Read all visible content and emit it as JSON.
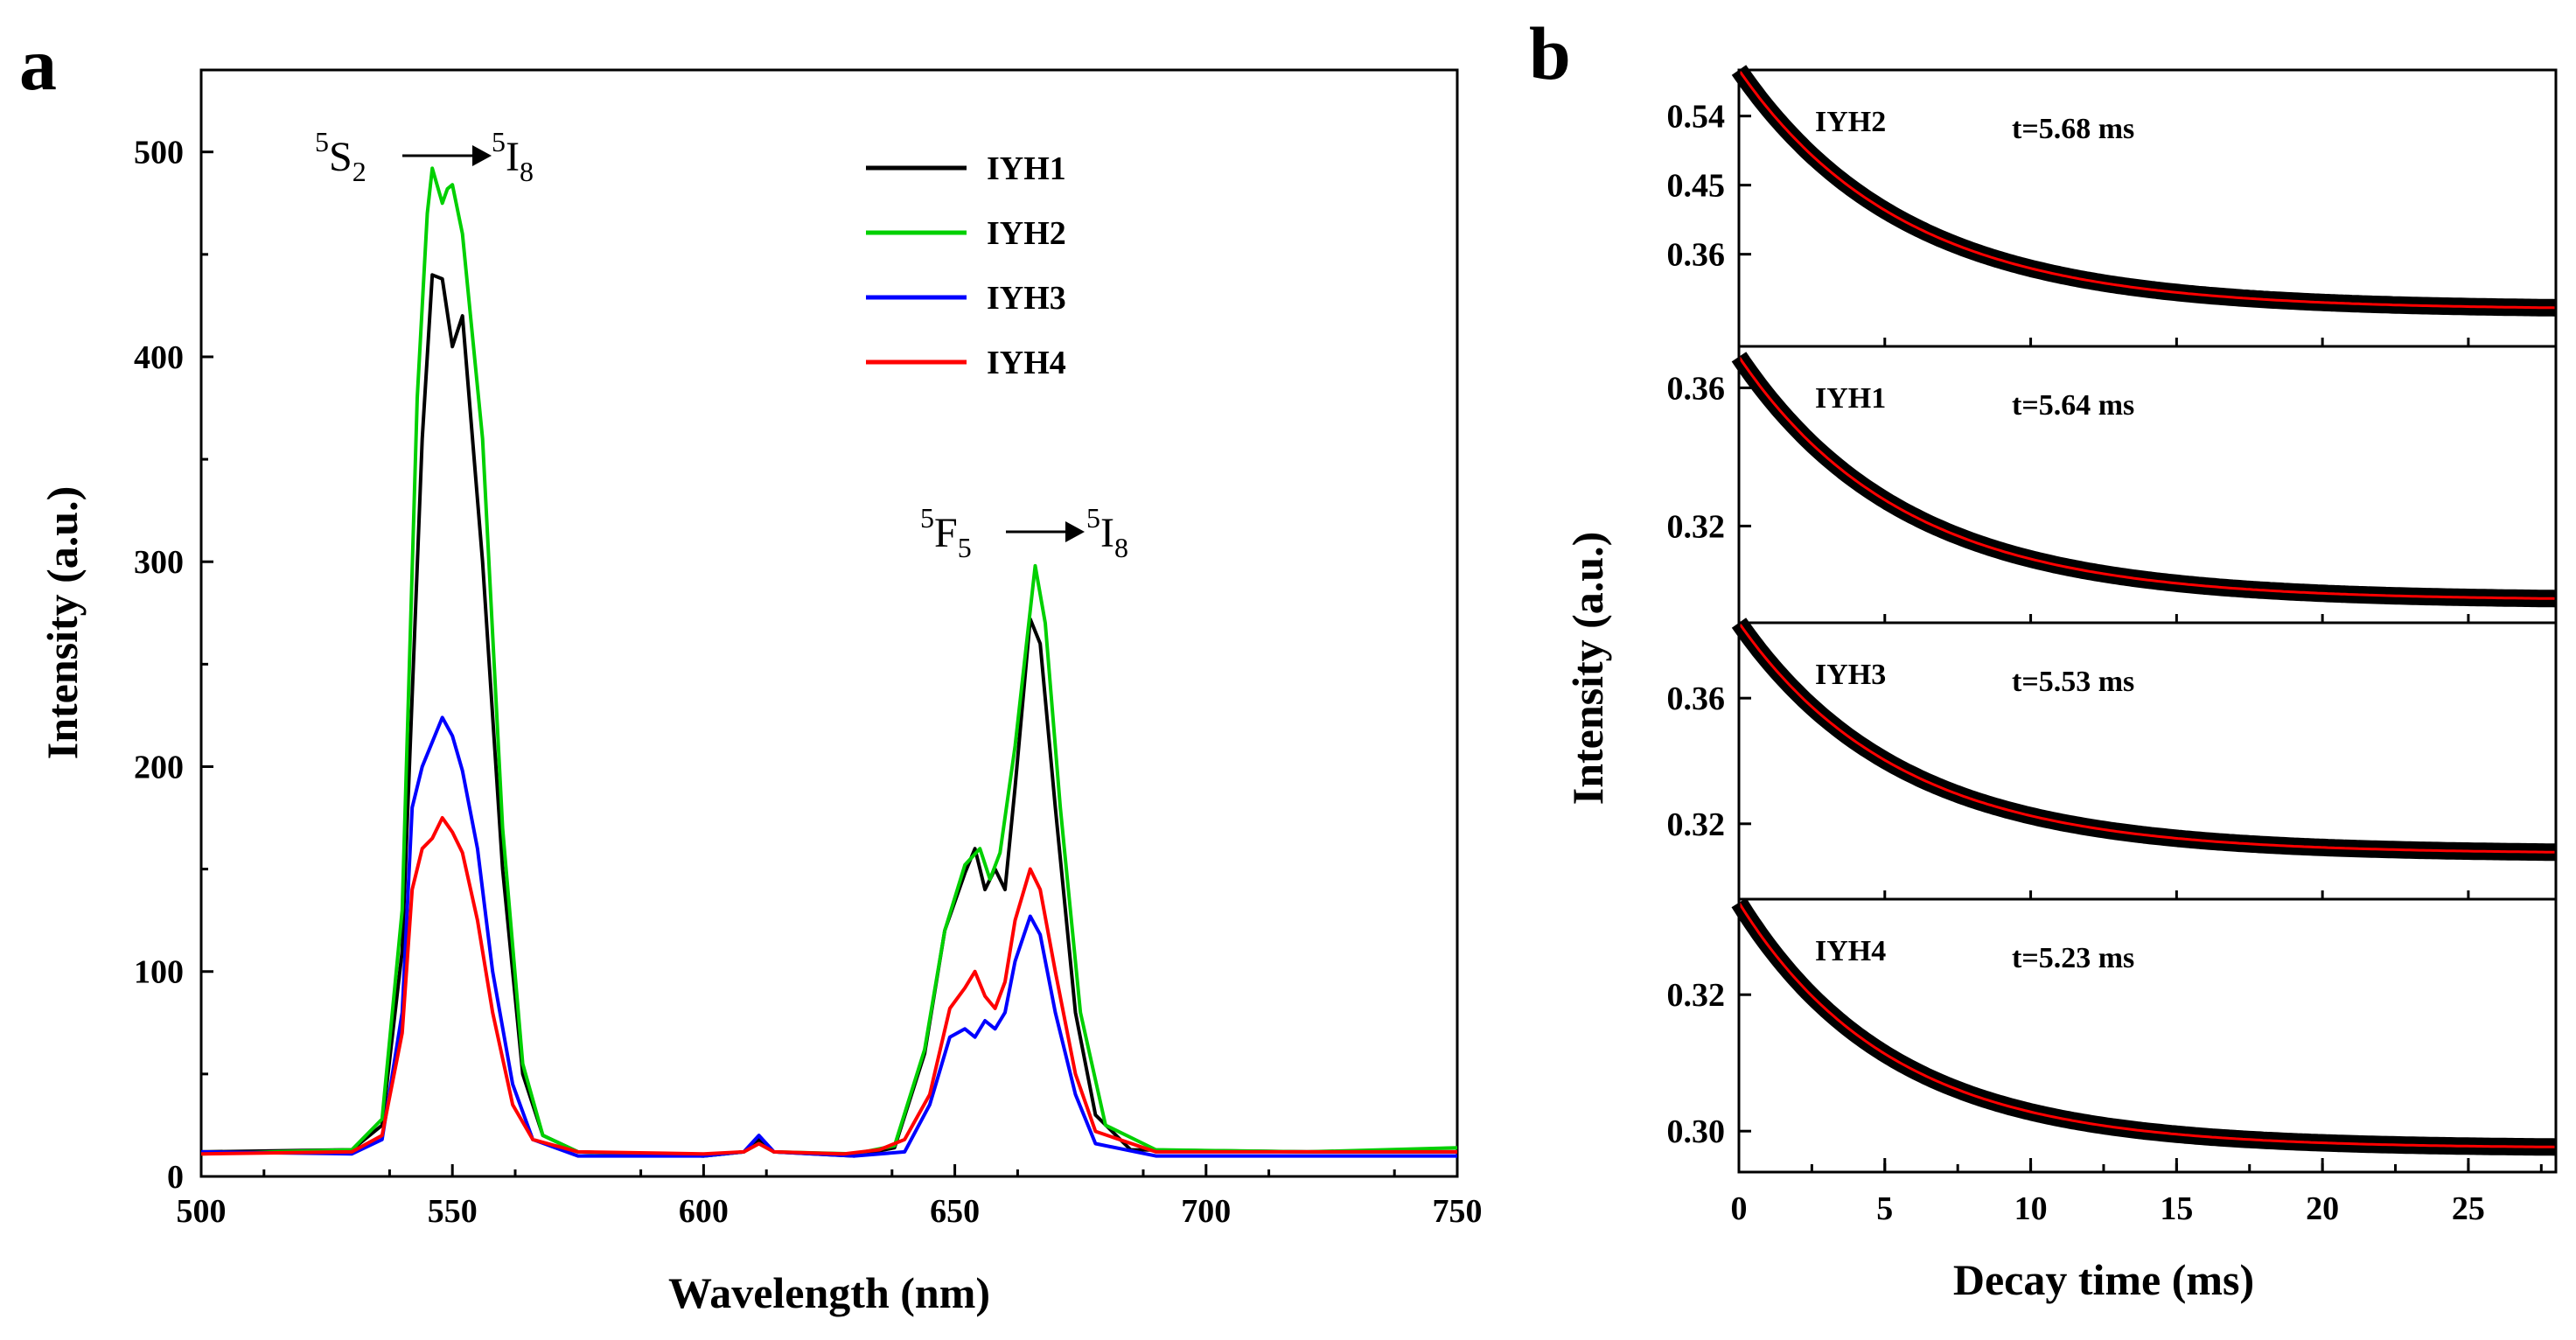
{
  "chart_data": [
    {
      "panel": "a",
      "type": "line",
      "title": "",
      "xlabel": "Wavelength (nm)",
      "ylabel": "Intensity (a.u.)",
      "xlim": [
        500,
        750
      ],
      "ylim": [
        0,
        540
      ],
      "xticks": [
        500,
        550,
        600,
        650,
        700,
        750
      ],
      "yticks": [
        0,
        100,
        200,
        300,
        400,
        500
      ],
      "legend_position": "top-center",
      "annotations": [
        {
          "text_sup1": "5",
          "text_main1": "S",
          "text_sub1": "2",
          "text_sup2": "5",
          "text_main2": "I",
          "text_sub2": "8"
        },
        {
          "text_sup1": "5",
          "text_main1": "F",
          "text_sub1": "5",
          "text_sup2": "5",
          "text_main2": "I",
          "text_sub2": "8"
        }
      ],
      "series": [
        {
          "name": "IYH1",
          "color": "#000000",
          "points": [
            [
              500,
              12
            ],
            [
              530,
              13
            ],
            [
              536,
              25
            ],
            [
              540,
              110
            ],
            [
              544,
              360
            ],
            [
              546,
              440
            ],
            [
              548,
              438
            ],
            [
              550,
              405
            ],
            [
              552,
              420
            ],
            [
              556,
              300
            ],
            [
              560,
              150
            ],
            [
              564,
              50
            ],
            [
              568,
              20
            ],
            [
              575,
              12
            ],
            [
              600,
              10
            ],
            [
              608,
              12
            ],
            [
              611,
              18
            ],
            [
              614,
              12
            ],
            [
              630,
              10
            ],
            [
              638,
              14
            ],
            [
              644,
              60
            ],
            [
              648,
              120
            ],
            [
              652,
              148
            ],
            [
              654,
              160
            ],
            [
              656,
              140
            ],
            [
              658,
              150
            ],
            [
              660,
              140
            ],
            [
              662,
              190
            ],
            [
              665,
              272
            ],
            [
              667,
              260
            ],
            [
              670,
              180
            ],
            [
              674,
              80
            ],
            [
              678,
              30
            ],
            [
              685,
              13
            ],
            [
              720,
              12
            ],
            [
              750,
              12
            ]
          ]
        },
        {
          "name": "IYH2",
          "color": "#00d000",
          "points": [
            [
              500,
              11
            ],
            [
              530,
              13
            ],
            [
              536,
              28
            ],
            [
              540,
              130
            ],
            [
              543,
              380
            ],
            [
              545,
              470
            ],
            [
              546,
              492
            ],
            [
              548,
              475
            ],
            [
              549,
              482
            ],
            [
              550,
              484
            ],
            [
              552,
              460
            ],
            [
              556,
              360
            ],
            [
              560,
              170
            ],
            [
              564,
              55
            ],
            [
              568,
              20
            ],
            [
              575,
              12
            ],
            [
              600,
              10
            ],
            [
              608,
              12
            ],
            [
              611,
              16
            ],
            [
              614,
              12
            ],
            [
              630,
              11
            ],
            [
              638,
              15
            ],
            [
              644,
              62
            ],
            [
              648,
              120
            ],
            [
              652,
              152
            ],
            [
              655,
              160
            ],
            [
              657,
              145
            ],
            [
              659,
              158
            ],
            [
              662,
              210
            ],
            [
              666,
              298
            ],
            [
              668,
              270
            ],
            [
              671,
              180
            ],
            [
              675,
              80
            ],
            [
              680,
              25
            ],
            [
              690,
              13
            ],
            [
              720,
              12
            ],
            [
              750,
              14
            ]
          ]
        },
        {
          "name": "IYH3",
          "color": "#0000ff",
          "points": [
            [
              500,
              12
            ],
            [
              530,
              11
            ],
            [
              536,
              18
            ],
            [
              540,
              80
            ],
            [
              542,
              180
            ],
            [
              544,
              200
            ],
            [
              546,
              212
            ],
            [
              548,
              224
            ],
            [
              550,
              215
            ],
            [
              552,
              198
            ],
            [
              555,
              160
            ],
            [
              558,
              100
            ],
            [
              562,
              45
            ],
            [
              566,
              18
            ],
            [
              575,
              10
            ],
            [
              600,
              10
            ],
            [
              608,
              12
            ],
            [
              611,
              20
            ],
            [
              614,
              12
            ],
            [
              630,
              10
            ],
            [
              640,
              12
            ],
            [
              645,
              35
            ],
            [
              649,
              68
            ],
            [
              652,
              72
            ],
            [
              654,
              68
            ],
            [
              656,
              76
            ],
            [
              658,
              72
            ],
            [
              660,
              80
            ],
            [
              662,
              105
            ],
            [
              665,
              127
            ],
            [
              667,
              118
            ],
            [
              670,
              80
            ],
            [
              674,
              40
            ],
            [
              678,
              16
            ],
            [
              690,
              10
            ],
            [
              750,
              10
            ]
          ]
        },
        {
          "name": "IYH4",
          "color": "#ff0000",
          "points": [
            [
              500,
              11
            ],
            [
              530,
              12
            ],
            [
              536,
              20
            ],
            [
              540,
              70
            ],
            [
              542,
              140
            ],
            [
              544,
              160
            ],
            [
              546,
              165
            ],
            [
              548,
              175
            ],
            [
              550,
              168
            ],
            [
              552,
              158
            ],
            [
              555,
              125
            ],
            [
              558,
              80
            ],
            [
              562,
              35
            ],
            [
              566,
              18
            ],
            [
              575,
              12
            ],
            [
              600,
              11
            ],
            [
              608,
              12
            ],
            [
              611,
              16
            ],
            [
              614,
              12
            ],
            [
              628,
              11
            ],
            [
              635,
              13
            ],
            [
              640,
              18
            ],
            [
              645,
              40
            ],
            [
              649,
              82
            ],
            [
              652,
              92
            ],
            [
              654,
              100
            ],
            [
              656,
              88
            ],
            [
              658,
              82
            ],
            [
              660,
              95
            ],
            [
              662,
              125
            ],
            [
              665,
              150
            ],
            [
              667,
              140
            ],
            [
              670,
              100
            ],
            [
              674,
              50
            ],
            [
              678,
              22
            ],
            [
              690,
              12
            ],
            [
              750,
              12
            ]
          ]
        }
      ]
    },
    {
      "panel": "b",
      "type": "line",
      "xlabel": "Decay time (ms)",
      "ylabel": "Intensity (a.u.)",
      "xlim": [
        0,
        28
      ],
      "xticks": [
        0,
        5,
        10,
        15,
        20,
        25
      ],
      "layout": "stacked",
      "subplots": [
        {
          "label": "IYH2",
          "lifetime": "t=5.68 ms",
          "ylim": [
            0.24,
            0.6
          ],
          "yticks": [
            0.36,
            0.45,
            0.54
          ],
          "ytick_labels": [
            "0.36",
            "0.45",
            "0.54"
          ],
          "decay": {
            "y0": 0.6,
            "yinf": 0.288,
            "tau": 5.68
          }
        },
        {
          "label": "IYH1",
          "lifetime": "t=5.64 ms",
          "ylim": [
            0.292,
            0.372
          ],
          "yticks": [
            0.32,
            0.36
          ],
          "ytick_labels": [
            "0.32",
            "0.36"
          ],
          "decay": {
            "y0": 0.369,
            "yinf": 0.2985,
            "tau": 5.64
          }
        },
        {
          "label": "IYH3",
          "lifetime": "t=5.53 ms",
          "ylim": [
            0.296,
            0.384
          ],
          "yticks": [
            0.32,
            0.36
          ],
          "ytick_labels": [
            "0.32",
            "0.36"
          ],
          "decay": {
            "y0": 0.384,
            "yinf": 0.3105,
            "tau": 5.53
          }
        },
        {
          "label": "IYH4",
          "lifetime": "t=5.23 ms",
          "ylim": [
            0.294,
            0.334
          ],
          "yticks": [
            0.3,
            0.32
          ],
          "ytick_labels": [
            "0.30",
            "0.32"
          ],
          "decay": {
            "y0": 0.3335,
            "yinf": 0.2975,
            "tau": 5.23
          }
        }
      ]
    }
  ]
}
